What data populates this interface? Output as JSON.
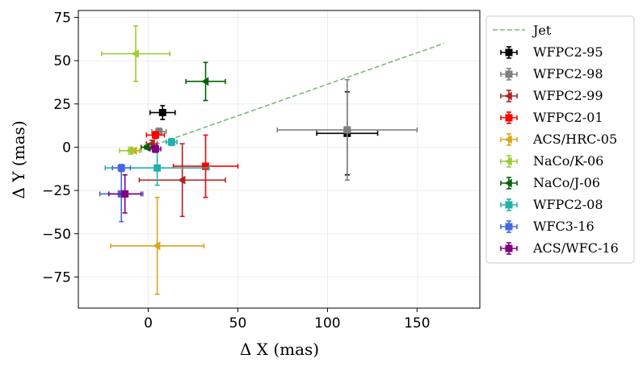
{
  "chart_data": {
    "type": "scatter",
    "xlabel": "Δ X (mas)",
    "ylabel": "Δ Y (mas)",
    "xlim": [
      -39,
      185
    ],
    "ylim": [
      -93,
      79
    ],
    "xticks": [
      0,
      50,
      100,
      150
    ],
    "yticks": [
      -75,
      -50,
      -25,
      0,
      25,
      50,
      75
    ],
    "grid": true,
    "legend_position": "upper-right-outside",
    "jet": {
      "name": "Jet",
      "color": "#7fb77e",
      "x": [
        0,
        165
      ],
      "y": [
        0,
        60
      ]
    },
    "series": [
      {
        "name": "WFPC2-95",
        "color": "#000000",
        "marker": "square",
        "points": [
          {
            "x": 8,
            "y": 20,
            "xerr": 7,
            "yerr": 4
          },
          {
            "x": 111,
            "y": 8,
            "xerr": 17,
            "yerr": 24
          }
        ]
      },
      {
        "name": "WFPC2-98",
        "color": "#808080",
        "marker": "square",
        "points": [
          {
            "x": 6,
            "y": 9,
            "xerr": 4,
            "yerr": 2
          },
          {
            "x": 111,
            "y": 10,
            "xerr": 39,
            "yerr": 29
          }
        ]
      },
      {
        "name": "WFPC2-99",
        "color": "#b22222",
        "marker": "triangle-left",
        "points": [
          {
            "x": 2,
            "y": 2,
            "xerr": 3,
            "yerr": 2
          },
          {
            "x": 19,
            "y": -19,
            "xerr": 24,
            "yerr": 21
          }
        ]
      },
      {
        "name": "WFPC2-01",
        "color": "#ff0000",
        "marker": "square",
        "points": [
          {
            "x": 4,
            "y": 7,
            "xerr": 5,
            "yerr": 2
          },
          {
            "x": 32,
            "y": -11,
            "xerr": 18,
            "yerr": 18
          }
        ]
      },
      {
        "name": "ACS/HRC-05",
        "color": "#daa520",
        "marker": "triangle-left",
        "points": [
          {
            "x": -8,
            "y": -2,
            "xerr": 3,
            "yerr": 1
          },
          {
            "x": 5,
            "y": -57,
            "xerr": 26,
            "yerr": 28
          }
        ]
      },
      {
        "name": "NaCo/K-06",
        "color": "#9acd32",
        "marker": "triangle-left",
        "points": [
          {
            "x": -10,
            "y": -2,
            "xerr": 6,
            "yerr": 2
          },
          {
            "x": -7,
            "y": 54,
            "xerr": 19,
            "yerr": 16
          }
        ]
      },
      {
        "name": "NaCo/J-06",
        "color": "#006400",
        "marker": "triangle-left",
        "points": [
          {
            "x": -1,
            "y": 0,
            "xerr": 3,
            "yerr": 1
          },
          {
            "x": 32,
            "y": 38,
            "xerr": 11,
            "yerr": 11
          }
        ]
      },
      {
        "name": "WFPC2-08",
        "color": "#20b2aa",
        "marker": "square",
        "points": [
          {
            "x": 13,
            "y": 3,
            "xerr": 3,
            "yerr": 2
          },
          {
            "x": 5,
            "y": -12,
            "xerr": 29,
            "yerr": 10
          }
        ]
      },
      {
        "name": "WFC3-16",
        "color": "#4169e1",
        "marker": "square",
        "points": [
          {
            "x": -15,
            "y": -12,
            "xerr": 5,
            "yerr": 2
          },
          {
            "x": -15,
            "y": -27,
            "xerr": 12,
            "yerr": 16
          }
        ]
      },
      {
        "name": "ACS/WFC-16",
        "color": "#800080",
        "marker": "square",
        "points": [
          {
            "x": 4,
            "y": -1,
            "xerr": 3,
            "yerr": 2
          },
          {
            "x": -13,
            "y": -27,
            "xerr": 9,
            "yerr": 11
          }
        ]
      }
    ]
  }
}
